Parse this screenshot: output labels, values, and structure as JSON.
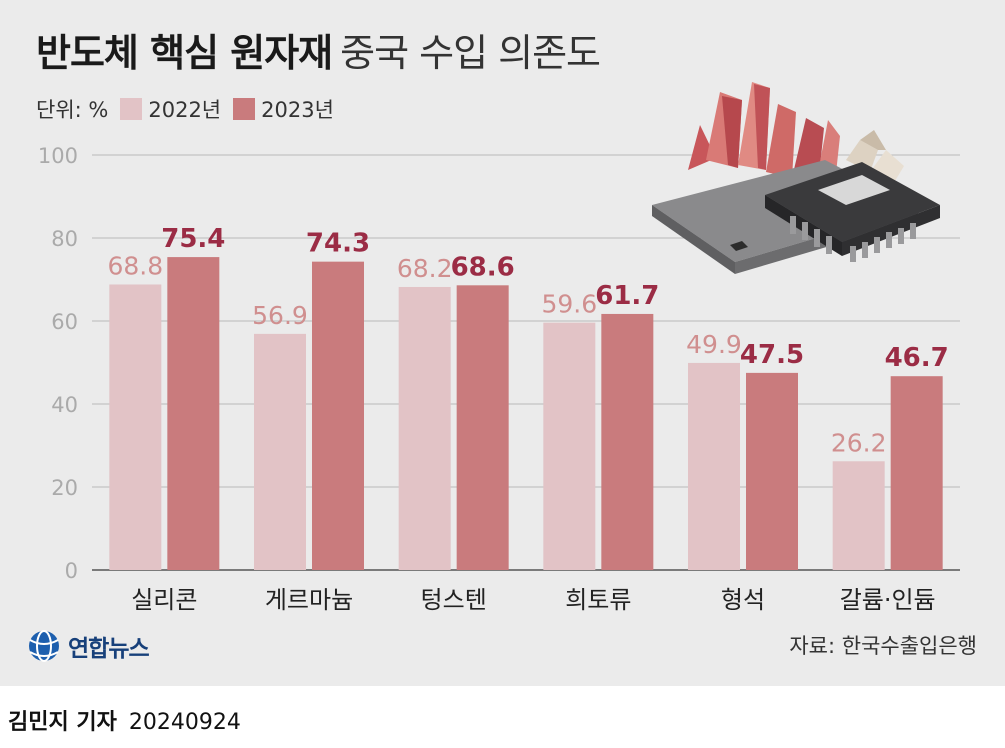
{
  "title": {
    "bold": "반도체 핵심 원자재",
    "light": "중국 수입 의존도"
  },
  "unit_label": "단위: %",
  "colors": {
    "y2022": "#e2c3c6",
    "y2023": "#c97b7d",
    "label2022": "#d08f8f",
    "label2023": "#9b2c45",
    "grid": "#b9b9b9",
    "axis_text": "#aaaaaa"
  },
  "chart_data": {
    "type": "bar",
    "title": "반도체 핵심 원자재 중국 수입 의존도",
    "ylabel": "단위: %",
    "ylim": [
      0,
      100
    ],
    "yticks": [
      0,
      20,
      40,
      60,
      80,
      100
    ],
    "grid": true,
    "legend_position": "top-left",
    "categories": [
      "실리콘",
      "게르마늄",
      "텅스텐",
      "희토류",
      "형석",
      "갈륨·인듐"
    ],
    "series": [
      {
        "name": "2022년",
        "values": [
          68.8,
          56.9,
          68.2,
          59.6,
          49.9,
          26.2
        ]
      },
      {
        "name": "2023년",
        "values": [
          75.4,
          74.3,
          68.6,
          61.7,
          47.5,
          46.7
        ]
      }
    ]
  },
  "logo": {
    "text": "연합뉴스",
    "icon": "yonhap-globe-icon"
  },
  "source": "자료: 한국수출입은행",
  "credit": {
    "name": "김민지 기자",
    "date": "20240924"
  }
}
